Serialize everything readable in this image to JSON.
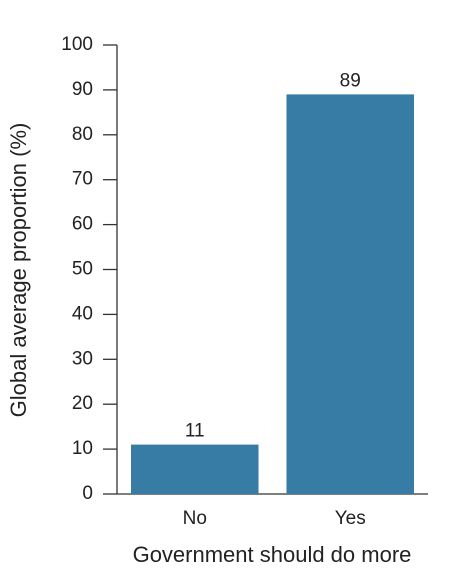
{
  "chart_data": {
    "type": "bar",
    "xlabel": "Government should do more",
    "ylabel": "Global average proportion (%)",
    "categories": [
      "No",
      "Yes"
    ],
    "values": [
      11,
      89
    ],
    "color": "#367ca5",
    "ylim": [
      0,
      100
    ],
    "yticks": [
      0,
      10,
      20,
      30,
      40,
      50,
      60,
      70,
      80,
      90,
      100
    ]
  }
}
